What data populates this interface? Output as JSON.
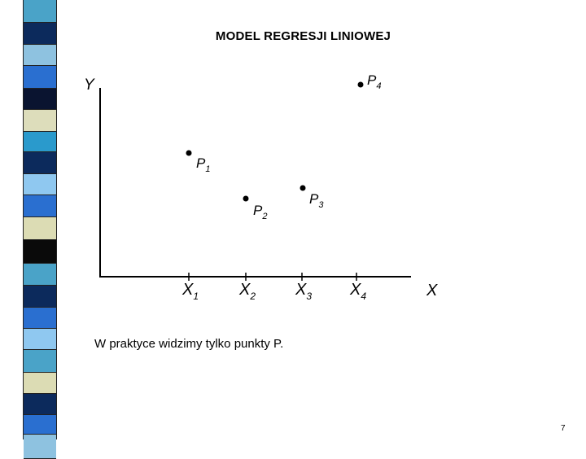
{
  "slide": {
    "title": "MODEL REGRESJI LINIOWEJ",
    "note": "W praktyce widzimy tylko punkty P.",
    "page_number": "7"
  },
  "decor": {
    "stripe_colors": [
      "#4aa3c8",
      "#0c2a5c",
      "#8ec2e0",
      "#2a6fd0",
      "#0a1430",
      "#ddddbb",
      "#2a9acc",
      "#0c2a5c",
      "#8fc8f0",
      "#2a6fd0",
      "#dcdcb4",
      "#0a0a0a",
      "#4aa3c8",
      "#0c2a5c",
      "#2a6fd0",
      "#8fc8f0",
      "#4aa3c8",
      "#dcdcb4",
      "#0c2a5c",
      "#2a6fd0",
      "#8ec2e0"
    ]
  },
  "diagram": {
    "y_axis_label": "Y",
    "x_axis_label": "X",
    "x_ticks": [
      {
        "letter": "X",
        "sub": "1"
      },
      {
        "letter": "X",
        "sub": "2"
      },
      {
        "letter": "X",
        "sub": "3"
      },
      {
        "letter": "X",
        "sub": "4"
      }
    ],
    "points": [
      {
        "letter": "P",
        "sub": "1"
      },
      {
        "letter": "P",
        "sub": "2"
      },
      {
        "letter": "P",
        "sub": "3"
      },
      {
        "letter": "P",
        "sub": "4"
      }
    ]
  }
}
